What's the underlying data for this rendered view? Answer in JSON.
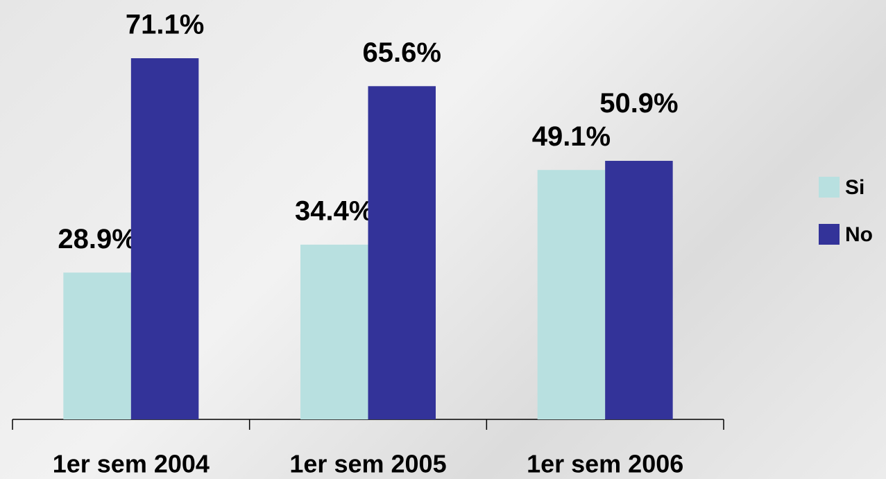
{
  "chart_data": {
    "type": "bar",
    "categories": [
      "1er sem 2004",
      "1er sem 2005",
      "1er sem 2006"
    ],
    "series": [
      {
        "name": "Si",
        "color": "#b8e0e0",
        "values": [
          28.9,
          34.4,
          49.1
        ],
        "value_labels": [
          "28.9%",
          "34.4%",
          "49.1%"
        ]
      },
      {
        "name": "No",
        "color": "#333399",
        "values": [
          71.1,
          65.6,
          50.9
        ],
        "value_labels": [
          "71.1%",
          "65.6%",
          "50.9%"
        ]
      }
    ]
  }
}
